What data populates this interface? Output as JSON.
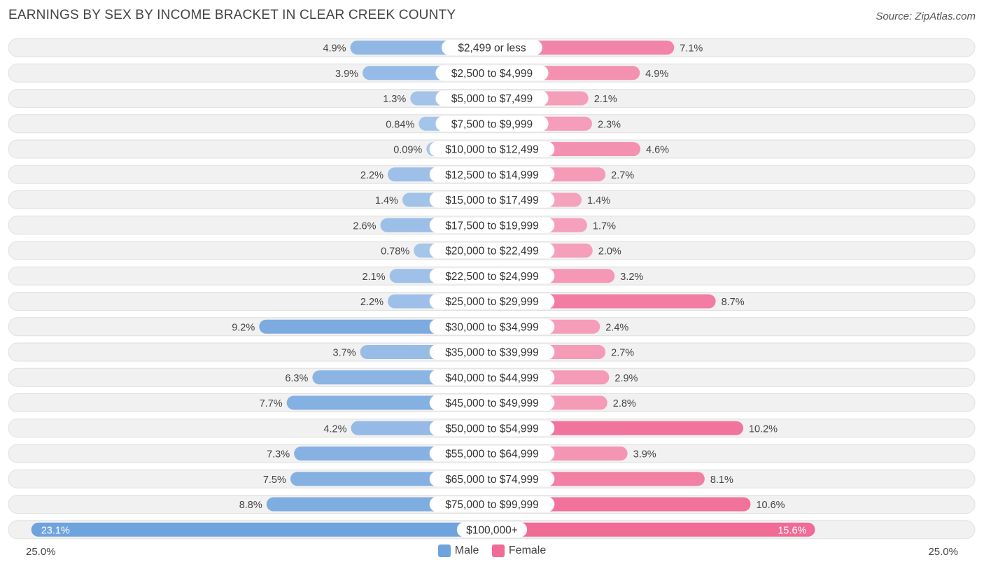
{
  "title": "EARNINGS BY SEX BY INCOME BRACKET IN CLEAR CREEK COUNTY",
  "source": "Source: ZipAtlas.com",
  "axis": {
    "left_label": "25.0%",
    "right_label": "25.0%"
  },
  "legend": {
    "male": "Male",
    "female": "Female"
  },
  "colors": {
    "male": "#6fa3dd",
    "male_light": "#a9c7ea",
    "female": "#f06b96",
    "female_light": "#f6a9c2",
    "row_bg": "#f1f1f1",
    "row_border": "#e0e0e0"
  },
  "chart_data": {
    "type": "bar",
    "orientation": "diverging-horizontal",
    "title": "EARNINGS BY SEX BY INCOME BRACKET IN CLEAR CREEK COUNTY",
    "xlim": [
      -25.0,
      25.0
    ],
    "unit": "%",
    "categories": [
      "$2,499 or less",
      "$2,500 to $4,999",
      "$5,000 to $7,499",
      "$7,500 to $9,999",
      "$10,000 to $12,499",
      "$12,500 to $14,999",
      "$15,000 to $17,499",
      "$17,500 to $19,999",
      "$20,000 to $22,499",
      "$22,500 to $24,999",
      "$25,000 to $29,999",
      "$30,000 to $34,999",
      "$35,000 to $39,999",
      "$40,000 to $44,999",
      "$45,000 to $49,999",
      "$50,000 to $54,999",
      "$55,000 to $64,999",
      "$65,000 to $74,999",
      "$75,000 to $99,999",
      "$100,000+"
    ],
    "series": [
      {
        "name": "Male",
        "values": [
          4.9,
          3.9,
          1.3,
          0.84,
          0.09,
          2.2,
          1.4,
          2.6,
          0.78,
          2.1,
          2.2,
          9.2,
          3.7,
          6.3,
          7.7,
          4.2,
          7.3,
          7.5,
          8.8,
          23.1
        ],
        "labels": [
          "4.9%",
          "3.9%",
          "1.3%",
          "0.84%",
          "0.09%",
          "2.2%",
          "1.4%",
          "2.6%",
          "0.78%",
          "2.1%",
          "2.2%",
          "9.2%",
          "3.7%",
          "6.3%",
          "7.7%",
          "4.2%",
          "7.3%",
          "7.5%",
          "8.8%",
          "23.1%"
        ]
      },
      {
        "name": "Female",
        "values": [
          7.1,
          4.9,
          2.1,
          2.3,
          4.6,
          2.7,
          1.4,
          1.7,
          2.0,
          3.2,
          8.7,
          2.4,
          2.7,
          2.9,
          2.8,
          10.2,
          3.9,
          8.1,
          10.6,
          15.6
        ],
        "labels": [
          "7.1%",
          "4.9%",
          "2.1%",
          "2.3%",
          "4.6%",
          "2.7%",
          "1.4%",
          "1.7%",
          "2.0%",
          "3.2%",
          "8.7%",
          "2.4%",
          "2.7%",
          "2.9%",
          "2.8%",
          "10.2%",
          "3.9%",
          "8.1%",
          "10.6%",
          "15.6%"
        ]
      }
    ]
  }
}
